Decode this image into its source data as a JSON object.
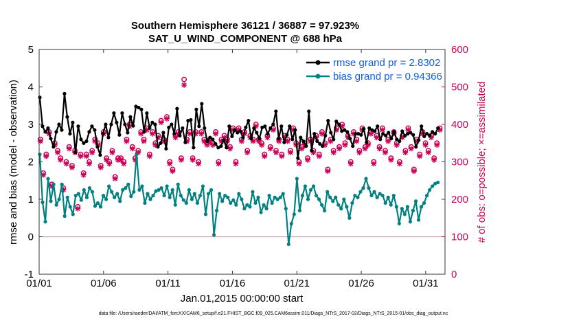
{
  "chart_data": {
    "type": "line",
    "title": "Southern Hemisphere 36121 / 36887 = 97.923%",
    "subtitle": "SAT_U_WIND_COMPONENT @ 688 hPa",
    "xlabel": "Jan.01,2015 00:00:00 start",
    "ylabel": "rmse and bias (model - observation)",
    "y2label": "# of obs: o=possible; ×=assimilated",
    "footer": "data file: /Users/raeder/DAI/ATM_forcXX/CAM6_setup/f.e21.FHIST_BGC.f09_025.CAM6assim.011/Diags_NTrS_2017-02/Diags_NTrS_2015-01/obs_diag_output.nc",
    "xlim": [
      0,
      31.5
    ],
    "ylim": [
      -1,
      5
    ],
    "y2lim": [
      0,
      600
    ],
    "x_ticks": [
      0,
      5,
      10,
      15,
      20,
      25,
      30
    ],
    "x_tick_labels": [
      "01/01",
      "01/06",
      "01/11",
      "01/16",
      "01/21",
      "01/26",
      "01/31"
    ],
    "y_ticks": [
      "-1",
      "0",
      "1",
      "2",
      "3",
      "4",
      "5"
    ],
    "y2_ticks": [
      "0",
      "100",
      "200",
      "300",
      "400",
      "500",
      "600"
    ],
    "legend_position": "top-right",
    "colors": {
      "rmse": "#000000",
      "bias": "#008080",
      "obs": "#cc0055",
      "legend_text": "#1060d8",
      "zero_line": "#c8a0a8"
    },
    "series": [
      {
        "name": "rmse grand pr = 2.8302",
        "axis": "left",
        "color": "#000000",
        "values": [
          3.72,
          2.95,
          2.8,
          2.9,
          2.62,
          2.4,
          2.8,
          3.0,
          2.85,
          3.82,
          3.2,
          2.75,
          3.05,
          2.25,
          2.95,
          2.6,
          2.5,
          2.55,
          2.8,
          2.95,
          2.85,
          2.4,
          2.18,
          2.75,
          3.0,
          2.65,
          3.0,
          3.3,
          3.05,
          2.72,
          3.3,
          3.0,
          2.78,
          3.2,
          2.96,
          3.48,
          3.45,
          3.4,
          2.8,
          3.3,
          2.9,
          3.05,
          3.0,
          2.4,
          2.5,
          2.78,
          2.35,
          2.92,
          3.0,
          2.75,
          3.42,
          2.7,
          2.9,
          2.52,
          3.1,
          3.12,
          2.38,
          3.4,
          2.95,
          3.55,
          2.9,
          2.55,
          2.65,
          2.6,
          2.48,
          2.38,
          2.42,
          2.58,
          2.38,
          2.95,
          2.68,
          2.85,
          2.78,
          2.82,
          2.65,
          2.92,
          3.1,
          2.62,
          2.9,
          2.78,
          2.62,
          2.92,
          2.95,
          2.75,
          2.9,
          3.0,
          3.35,
          2.62,
          2.95,
          2.52,
          2.72,
          2.95,
          2.6,
          2.85,
          2.1,
          2.65,
          2.55,
          2.42,
          3.35,
          2.3,
          2.75,
          2.55,
          2.48,
          2.42,
          2.7,
          3.1,
          2.78,
          2.6,
          3.08,
          3.0,
          2.82,
          2.85,
          2.8,
          2.62,
          2.42,
          2.75,
          2.75,
          2.72,
          2.88,
          2.52,
          2.9,
          2.85,
          2.82,
          2.95,
          2.6,
          2.75,
          2.7,
          2.78,
          2.62,
          2.8,
          2.6,
          2.55,
          2.82,
          2.7,
          2.75,
          2.78,
          2.72,
          2.4,
          2.58,
          2.95,
          2.68,
          2.75,
          2.7,
          2.8,
          2.75,
          2.9
        ]
      },
      {
        "name": "bias grand pr = 0.94366",
        "axis": "left",
        "color": "#008080",
        "values": [
          2.2,
          0.92,
          0.4,
          1.55,
          0.95,
          1.4,
          0.85,
          1.0,
          1.4,
          0.55,
          1.05,
          0.8,
          0.6,
          1.1,
          1.15,
          0.98,
          1.25,
          1.05,
          1.3,
          1.2,
          0.82,
          0.9,
          0.8,
          1.1,
          1.0,
          1.35,
          1.2,
          1.05,
          1.15,
          0.95,
          1.25,
          1.3,
          1.4,
          1.08,
          1.2,
          2.2,
          1.25,
          1.35,
          0.9,
          1.15,
          1.0,
          1.1,
          1.22,
          1.25,
          1.3,
          1.1,
          1.35,
          1.05,
          1.25,
          0.85,
          1.4,
          1.1,
          0.98,
          0.9,
          1.25,
          1.0,
          1.15,
          0.9,
          1.1,
          1.35,
          0.6,
          1.15,
          1.25,
          0.05,
          0.7,
          1.15,
          0.95,
          1.1,
          1.05,
          0.9,
          0.98,
          0.85,
          1.15,
          1.0,
          0.75,
          0.85,
          0.8,
          1.2,
          0.9,
          1.05,
          0.65,
          0.85,
          0.75,
          1.1,
          0.9,
          1.05,
          1.0,
          1.05,
          1.15,
          0.75,
          -0.2,
          0.35,
          0.6,
          1.55,
          0.7,
          1.1,
          1.35,
          1.0,
          1.25,
          1.35,
          1.1,
          1.0,
          0.85,
          0.7,
          1.2,
          1.05,
          0.95,
          1.05,
          0.85,
          0.75,
          1.0,
          0.8,
          0.5,
          0.9,
          1.1,
          1.05,
          1.2,
          1.3,
          1.55,
          1.3,
          1.1,
          1.2,
          1.05,
          1.15,
          1.1,
          0.9,
          1.05,
          0.85,
          1.1,
          0.8,
          0.35,
          0.75,
          0.6,
          0.8,
          0.4,
          0.7,
          0.95,
          0.45,
          0.8,
          0.9,
          1.1,
          1.25,
          1.35,
          1.42,
          1.45
        ]
      },
      {
        "name": "obs possible",
        "axis": "right",
        "marker": "o",
        "color": "#cc0055",
        "values": [
          360,
          270,
          320,
          380,
          240,
          350,
          330,
          310,
          230,
          300,
          340,
          290,
          330,
          180,
          320,
          270,
          320,
          300,
          330,
          360,
          350,
          290,
          380,
          310,
          300,
          330,
          260,
          310,
          310,
          300,
          360,
          400,
          340,
          310,
          330,
          380,
          360,
          390,
          320,
          380,
          350,
          370,
          410,
          360,
          420,
          300,
          280,
          370,
          380,
          310,
          520,
          360,
          380,
          310,
          380,
          300,
          380,
          360,
          350,
          360,
          350,
          380,
          300,
          360,
          370,
          360,
          340,
          390,
          300,
          390,
          360,
          380,
          330,
          370,
          360,
          400,
          360,
          350,
          320,
          370,
          340,
          390,
          330,
          360,
          320,
          370,
          360,
          330,
          390,
          350,
          300,
          340,
          350,
          310,
          360,
          330,
          370,
          320,
          380,
          350,
          280,
          360,
          330,
          390,
          340,
          400,
          350,
          370,
          300,
          380,
          360,
          330,
          390,
          340,
          350,
          380,
          300,
          370,
          340,
          390,
          330,
          360,
          310,
          380,
          350,
          300,
          370,
          330,
          390,
          340,
          280,
          360,
          320,
          380,
          350,
          330,
          370,
          310,
          350,
          390
        ]
      },
      {
        "name": "obs assimilated",
        "axis": "right",
        "marker": "x",
        "color": "#cc0055",
        "values": [
          355,
          265,
          315,
          375,
          235,
          345,
          325,
          305,
          225,
          295,
          335,
          285,
          325,
          175,
          315,
          265,
          315,
          295,
          325,
          355,
          345,
          285,
          375,
          305,
          295,
          325,
          255,
          305,
          305,
          295,
          355,
          395,
          335,
          305,
          325,
          375,
          355,
          385,
          315,
          375,
          345,
          365,
          405,
          355,
          415,
          295,
          275,
          365,
          375,
          305,
          505,
          355,
          375,
          305,
          375,
          295,
          375,
          355,
          345,
          355,
          345,
          375,
          295,
          355,
          365,
          355,
          335,
          385,
          295,
          385,
          355,
          375,
          325,
          365,
          355,
          395,
          355,
          345,
          315,
          365,
          335,
          385,
          325,
          355,
          315,
          365,
          355,
          325,
          385,
          345,
          295,
          335,
          345,
          305,
          355,
          325,
          365,
          315,
          375,
          345,
          275,
          355,
          325,
          385,
          335,
          395,
          345,
          365,
          295,
          375,
          355,
          325,
          385,
          335,
          345,
          375,
          295,
          365,
          335,
          385,
          325,
          355,
          305,
          375,
          345,
          295,
          365,
          325,
          385,
          335,
          275,
          355,
          315,
          375,
          345,
          325,
          365,
          305,
          345,
          385
        ]
      }
    ]
  }
}
